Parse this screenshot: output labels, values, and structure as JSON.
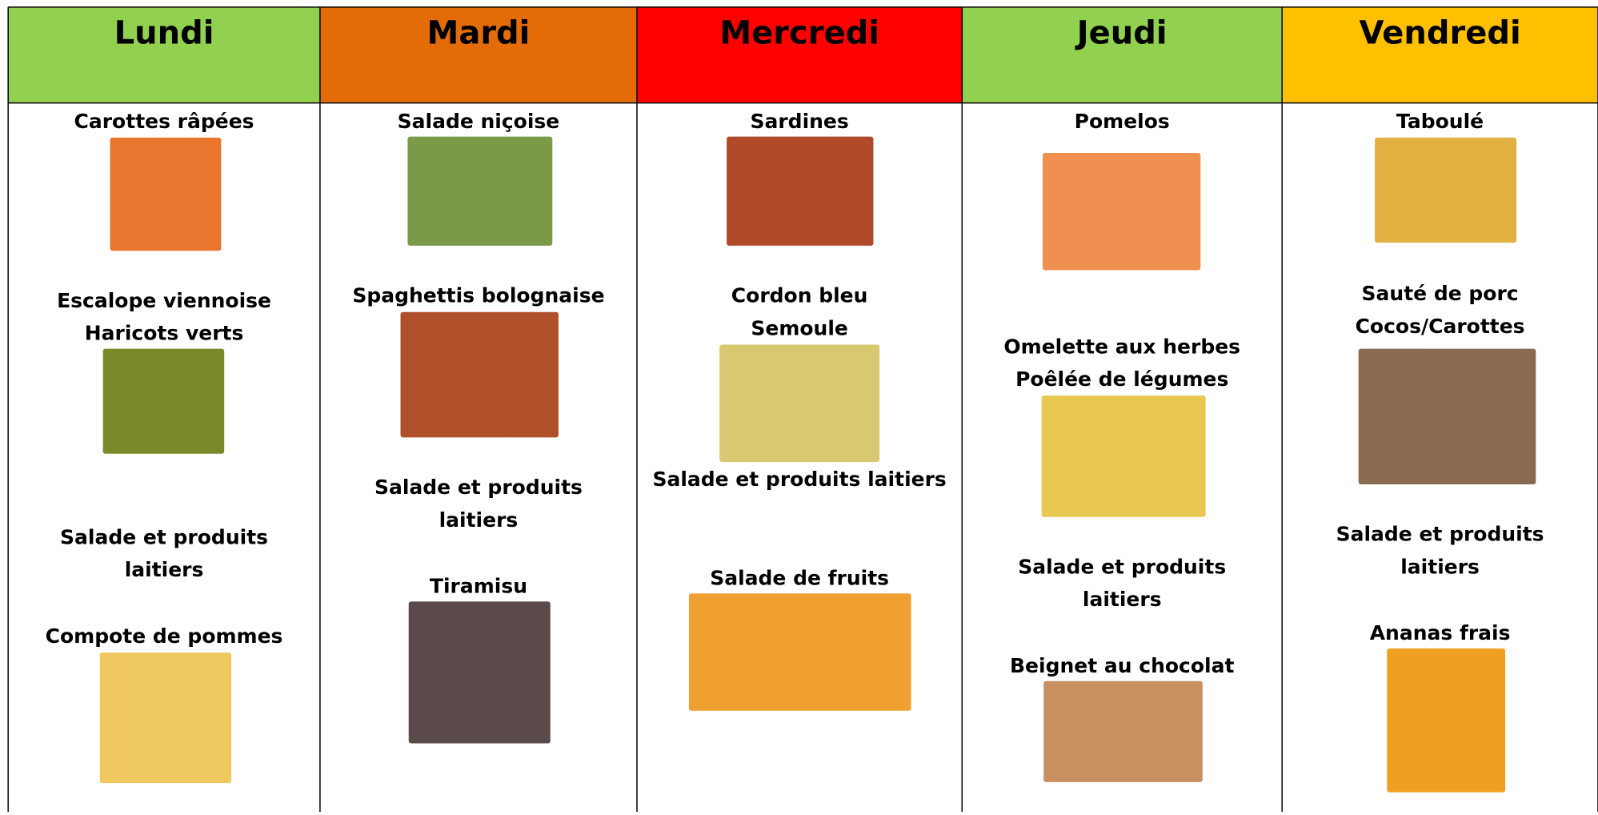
{
  "days": [
    {
      "name": "Lundi",
      "items": [
        [
          "Carottes râpées"
        ],
        [
          "Escalope viennoise",
          "Haricots verts"
        ],
        [
          "Salade et produits",
          "laitiers"
        ],
        [
          "Compote de pommes"
        ]
      ]
    },
    {
      "name": "Mardi",
      "items": [
        [
          "Salade niçoise"
        ],
        [
          "Spaghettis bolognaise"
        ],
        [
          "Salade et produits",
          "laitiers"
        ],
        [
          "Tiramisu"
        ]
      ]
    },
    {
      "name": "Mercredi",
      "items": [
        [
          "Sardines"
        ],
        [
          "Cordon bleu",
          "Semoule"
        ],
        [
          "Salade et produits laitiers"
        ],
        [
          "Salade de fruits"
        ]
      ]
    },
    {
      "name": "Jeudi",
      "items": [
        [
          "Pomelos"
        ],
        [
          "Omelette aux herbes",
          "Poêlée de légumes"
        ],
        [
          "Salade et produits",
          "laitiers"
        ],
        [
          "Beignet au chocolat"
        ]
      ]
    },
    {
      "name": "Vendredi",
      "items": [
        [
          "Taboulé"
        ],
        [
          "Sauté de porc",
          "Cocos/Carottes"
        ],
        [
          "Salade et produits",
          "laitiers"
        ],
        [
          "Ananas frais"
        ]
      ]
    }
  ]
}
